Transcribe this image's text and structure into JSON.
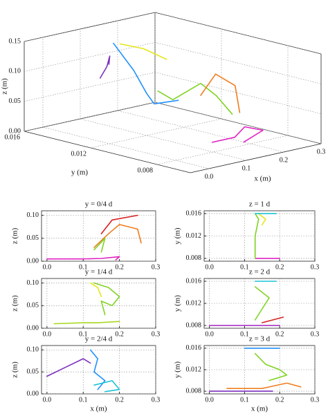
{
  "chart_data": [
    {
      "type": "line3d",
      "xlabel": "x (m)",
      "ylabel": "y (m)",
      "zlabel": "z (m)",
      "xlim": [
        -0.05,
        0.3
      ],
      "ylim": [
        0.006,
        0.016
      ],
      "zlim": [
        0,
        0.15
      ],
      "xticks": [
        {
          "value": 0,
          "label": "0.0"
        },
        0.1,
        0.2,
        0.3
      ],
      "yticks": [
        0.008,
        0.012,
        0.016
      ],
      "zticks": [
        {
          "value": 0,
          "label": "0.00"
        },
        0.05,
        {
          "value": 0.1,
          "label": "0.10"
        },
        0.15
      ],
      "grid": true,
      "series": [
        {
          "color": "#7b2fbe",
          "x": [
            0.02,
            0.06,
            0.09,
            0.11
          ],
          "y": [
            0.013,
            0.0135,
            0.014,
            0.0145
          ],
          "z": [
            0.1,
            0.11,
            0.12,
            0.1
          ]
        },
        {
          "color": "#1e90ff",
          "x": [
            0.1,
            0.11,
            0.1,
            0.12,
            0.14
          ],
          "y": [
            0.014,
            0.013,
            0.012,
            0.012,
            0.011
          ],
          "z": [
            0.14,
            0.1,
            0.07,
            0.05,
            0.06
          ]
        },
        {
          "color": "#7fd321",
          "x": [
            0.13,
            0.17,
            0.2,
            0.22,
            0.24
          ],
          "y": [
            0.012,
            0.012,
            0.011,
            0.0105,
            0.01
          ],
          "z": [
            0.07,
            0.05,
            0.08,
            0.06,
            0.03
          ]
        },
        {
          "color": "#e6e619",
          "x": [
            0.14,
            0.18,
            0.22
          ],
          "y": [
            0.0145,
            0.014,
            0.0135
          ],
          "z": [
            0.13,
            0.12,
            0.1
          ]
        },
        {
          "color": "#f07d1e",
          "x": [
            0.2,
            0.24,
            0.27,
            0.26
          ],
          "y": [
            0.011,
            0.011,
            0.0105,
            0.01
          ],
          "z": [
            0.06,
            0.09,
            0.07,
            0.03
          ]
        },
        {
          "color": "#e020c0",
          "x": [
            0.12,
            0.18,
            0.22,
            0.26,
            0.2
          ],
          "y": [
            0.0085,
            0.0085,
            0.0088,
            0.0086,
            0.0084
          ],
          "z": [
            0.01,
            0.01,
            0.02,
            0.01,
            0.0
          ]
        }
      ]
    },
    {
      "type": "line",
      "title": "y = 0/4 d",
      "ylabel": "z (m)",
      "xlim": [
        -0.015,
        0.3
      ],
      "ylim": [
        0,
        0.11
      ],
      "xticks": [
        {
          "value": 0,
          "label": "0.0"
        },
        0.1,
        0.2,
        0.3
      ],
      "yticks": [
        {
          "value": 0,
          "label": "0.00"
        },
        0.05,
        {
          "value": 0.1,
          "label": "0.10"
        }
      ],
      "grid": true,
      "series": [
        {
          "color": "#e020c0",
          "x": [
            0.0,
            0.1,
            0.15,
            0.2,
            0.19
          ],
          "values": [
            0.005,
            0.005,
            0.006,
            0.01,
            0.003
          ]
        },
        {
          "color": "#f07d1e",
          "x": [
            0.13,
            0.17,
            0.2,
            0.25,
            0.26
          ],
          "values": [
            0.03,
            0.06,
            0.08,
            0.07,
            0.04
          ]
        },
        {
          "color": "#d62020",
          "x": [
            0.15,
            0.18,
            0.25
          ],
          "values": [
            0.06,
            0.09,
            0.1
          ]
        },
        {
          "color": "#7fd321",
          "x": [
            0.13,
            0.16,
            0.15
          ],
          "values": [
            0.025,
            0.05,
            0.02
          ]
        }
      ]
    },
    {
      "type": "line",
      "title": "z = 1 d",
      "ylabel": "y (m)",
      "xlim": [
        -0.015,
        0.3
      ],
      "ylim": [
        0.0075,
        0.0165
      ],
      "xticks": [
        {
          "value": 0,
          "label": "0.0"
        },
        0.1,
        0.2,
        0.3
      ],
      "yticks": [
        0.008,
        0.012,
        0.016
      ],
      "grid": true,
      "series": [
        {
          "color": "#e020c0",
          "x": [
            0.13,
            0.16,
            0.2
          ],
          "values": [
            0.008,
            0.008,
            0.008
          ]
        },
        {
          "color": "#7fd321",
          "x": [
            0.13,
            0.13,
            0.14,
            0.13
          ],
          "values": [
            0.008,
            0.012,
            0.015,
            0.016
          ]
        },
        {
          "color": "#e6e619",
          "x": [
            0.14,
            0.16,
            0.15
          ],
          "values": [
            0.016,
            0.015,
            0.014
          ]
        },
        {
          "color": "#19c3d6",
          "x": [
            0.13,
            0.16,
            0.19
          ],
          "values": [
            0.016,
            0.016,
            0.016
          ]
        }
      ]
    },
    {
      "type": "line",
      "title": "y = 1/4 d",
      "ylabel": "z (m)",
      "xlim": [
        -0.015,
        0.3
      ],
      "ylim": [
        0,
        0.11
      ],
      "xticks": [
        {
          "value": 0,
          "label": "0.0"
        },
        0.1,
        0.2,
        0.3
      ],
      "yticks": [
        {
          "value": 0,
          "label": "0.00"
        },
        0.05,
        {
          "value": 0.1,
          "label": "0.10"
        }
      ],
      "grid": true,
      "series": [
        {
          "color": "#a8d820",
          "x": [
            0.02,
            0.1,
            0.14,
            0.2
          ],
          "values": [
            0.01,
            0.012,
            0.012,
            0.015
          ]
        },
        {
          "color": "#7fd321",
          "x": [
            0.13,
            0.17,
            0.2,
            0.18,
            0.15,
            0.16
          ],
          "values": [
            0.1,
            0.09,
            0.07,
            0.05,
            0.06,
            0.03
          ]
        },
        {
          "color": "#e6e619",
          "x": [
            0.12,
            0.14,
            0.15
          ],
          "values": [
            0.1,
            0.09,
            0.07
          ]
        }
      ]
    },
    {
      "type": "line",
      "title": "z = 2 d",
      "ylabel": "y (m)",
      "xlim": [
        -0.015,
        0.3
      ],
      "ylim": [
        0.0075,
        0.0165
      ],
      "xticks": [
        {
          "value": 0,
          "label": "0.0"
        },
        0.1,
        0.2,
        0.3
      ],
      "yticks": [
        0.008,
        0.012,
        0.016
      ],
      "grid": true,
      "series": [
        {
          "color": "#a020c0",
          "x": [
            0.0,
            0.1,
            0.2
          ],
          "values": [
            0.008,
            0.008,
            0.008
          ]
        },
        {
          "color": "#7fd321",
          "x": [
            0.13,
            0.15,
            0.17,
            0.15,
            0.13
          ],
          "values": [
            0.009,
            0.011,
            0.013,
            0.014,
            0.015
          ]
        },
        {
          "color": "#d62020",
          "x": [
            0.15,
            0.18,
            0.21
          ],
          "values": [
            0.0085,
            0.009,
            0.0095
          ]
        },
        {
          "color": "#19c3d6",
          "x": [
            0.13,
            0.16,
            0.19
          ],
          "values": [
            0.016,
            0.016,
            0.016
          ]
        }
      ]
    },
    {
      "type": "line",
      "title": "y = 2/4 d",
      "xlabel": "x (m)",
      "ylabel": "z (m)",
      "xlim": [
        -0.015,
        0.3
      ],
      "ylim": [
        0,
        0.11
      ],
      "xticks": [
        {
          "value": 0,
          "label": "0.0"
        },
        0.1,
        0.2,
        0.3
      ],
      "yticks": [
        {
          "value": 0,
          "label": "0.00"
        },
        0.05,
        {
          "value": 0.1,
          "label": "0.10"
        }
      ],
      "grid": true,
      "series": [
        {
          "color": "#7b2fbe",
          "x": [
            0.0,
            0.05,
            0.1,
            0.12
          ],
          "values": [
            0.04,
            0.06,
            0.08,
            0.07
          ]
        },
        {
          "color": "#1e90ff",
          "x": [
            0.12,
            0.14,
            0.13,
            0.16,
            0.14
          ],
          "values": [
            0.1,
            0.08,
            0.05,
            0.03,
            0.01
          ]
        },
        {
          "color": "#19c3d6",
          "x": [
            0.13,
            0.18,
            0.2,
            0.16
          ],
          "values": [
            0.02,
            0.03,
            0.01,
            0.005
          ]
        }
      ]
    },
    {
      "type": "line",
      "title": "z = 3 d",
      "xlabel": "x (m)",
      "ylabel": "y (m)",
      "xlim": [
        -0.015,
        0.3
      ],
      "ylim": [
        0.0075,
        0.0165
      ],
      "xticks": [
        {
          "value": 0,
          "label": "0.0"
        },
        0.1,
        0.2,
        0.3
      ],
      "yticks": [
        0.008,
        0.012,
        0.016
      ],
      "grid": true,
      "series": [
        {
          "color": "#1e90ff",
          "x": [
            0.1,
            0.15,
            0.2
          ],
          "values": [
            0.016,
            0.016,
            0.016
          ]
        },
        {
          "color": "#7fd321",
          "x": [
            0.13,
            0.16,
            0.2,
            0.22,
            0.17
          ],
          "values": [
            0.015,
            0.013,
            0.012,
            0.011,
            0.01
          ]
        },
        {
          "color": "#f07d1e",
          "x": [
            0.05,
            0.15,
            0.22,
            0.26
          ],
          "values": [
            0.0085,
            0.0085,
            0.0095,
            0.0088
          ]
        },
        {
          "color": "#7b2fbe",
          "x": [
            0.0,
            0.1,
            0.18
          ],
          "values": [
            0.008,
            0.008,
            0.008
          ]
        }
      ]
    }
  ]
}
